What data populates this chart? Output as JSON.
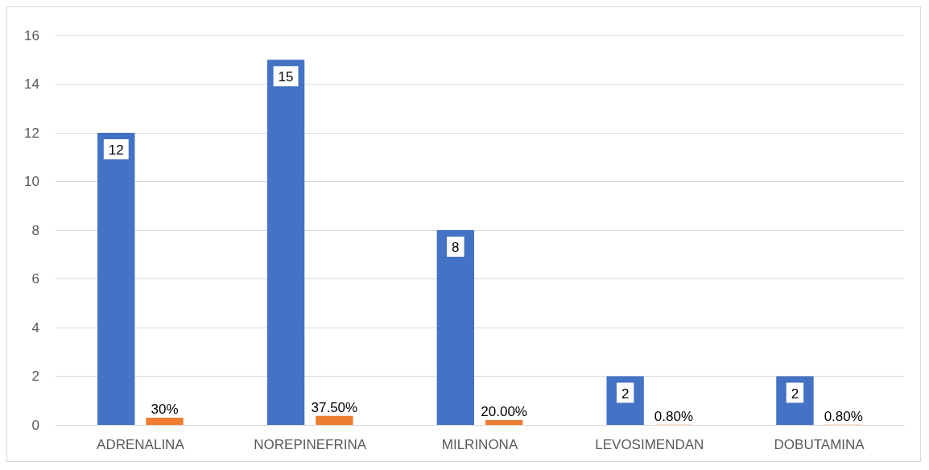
{
  "chart_data": {
    "type": "bar",
    "categories": [
      "ADRENALINA",
      "NOREPINEFRINA",
      "MILRINONA",
      "LEVOSIMENDAN",
      "DOBUTAMINA"
    ],
    "series": [
      {
        "color": "#4472c4",
        "values": [
          12,
          15,
          8,
          2,
          2
        ],
        "value_labels": [
          "12",
          "15",
          "8",
          "2",
          "2"
        ]
      },
      {
        "color": "#ed7d31",
        "values": [
          0.3,
          0.375,
          0.2,
          0.008,
          0.008
        ],
        "value_labels": [
          "30%",
          "37.50%",
          "20.00%",
          "0.80%",
          "0.80%"
        ]
      }
    ],
    "ylim": [
      0,
      16
    ],
    "yticks": [
      0,
      2,
      4,
      6,
      8,
      10,
      12,
      14,
      16
    ],
    "grid": "y"
  }
}
